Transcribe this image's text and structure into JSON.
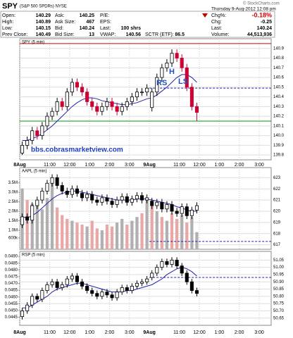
{
  "header": {
    "symbol": "SPY",
    "description": "(S&P 500 SPDRs) NYSE",
    "source": "© StockCharts.com",
    "datetime": "Thursday 9-Aug-2012 12:08 pm",
    "quotes": [
      [
        {
          "label": "Open:",
          "value": "140.29"
        },
        {
          "label": "High:",
          "value": "140.89"
        },
        {
          "label": "Low:",
          "value": "140.15"
        },
        {
          "label": "Prev Close:",
          "value": "140.49"
        }
      ],
      [
        {
          "label": "Ask:",
          "value": "140.25"
        },
        {
          "label": "Ask Size:",
          "value": "467"
        },
        {
          "label": "Bid:",
          "value": "140.24"
        },
        {
          "label": "Bid Size:",
          "value": "13"
        }
      ],
      [
        {
          "label": "P/E:"
        },
        {
          "label": "EPS:"
        },
        {
          "label": "Last:",
          "value": "100 shrs"
        },
        {
          "label": "VWAP:",
          "value": "140.56"
        }
      ],
      [
        {
          "label": "SCTR (ETF):",
          "value": "86.5"
        }
      ],
      [
        {
          "label": "Chg%:",
          "value": "-0.18%",
          "color": "#cc0000"
        },
        {
          "label": "Chg:",
          "value": "-0.25"
        },
        {
          "label": "Last:",
          "value": "140.24"
        },
        {
          "label": "Volume:",
          "value": "44,513,936"
        }
      ]
    ]
  },
  "chart_data": [
    {
      "type": "candlestick",
      "title": "SPY (5 min)",
      "grid": true,
      "show_xlabels": true,
      "up_color": "#000000",
      "down_color": "#cc0033",
      "ma_color": "#2222aa",
      "xlim": [
        0,
        12.6
      ],
      "ylim": [
        139.75,
        141.0
      ],
      "xticks": [
        {
          "value": 0,
          "label": "8Aug"
        },
        {
          "value": 1.5,
          "label": "11:00"
        },
        {
          "value": 2.5,
          "label": "12:00"
        },
        {
          "value": 3.5,
          "label": "1:00"
        },
        {
          "value": 4.5,
          "label": "2:00"
        },
        {
          "value": 5.5,
          "label": "3:00"
        },
        {
          "value": 6.5,
          "label": "9Aug"
        },
        {
          "value": 8,
          "label": "11:00"
        },
        {
          "value": 9,
          "label": "12:00"
        },
        {
          "value": 10,
          "label": "1:00"
        },
        {
          "value": 11,
          "label": "2:00"
        },
        {
          "value": 12,
          "label": "3:00"
        }
      ],
      "yticks": [
        139.8,
        139.9,
        {
          "value": 140,
          "label": "140.0"
        },
        140.1,
        140.2,
        140.3,
        140.4,
        140.5,
        140.6,
        140.7,
        140.8,
        140.9
      ],
      "x": [
        0.125,
        0.375,
        0.625,
        0.875,
        1.125,
        1.375,
        1.625,
        1.875,
        2.125,
        2.375,
        2.625,
        2.875,
        3.125,
        3.375,
        3.625,
        3.875,
        4.125,
        4.375,
        4.625,
        4.875,
        5.125,
        5.375,
        5.625,
        5.875,
        6.125,
        6.375,
        6.625,
        6.875,
        7.125,
        7.375,
        7.625,
        7.875,
        8.125,
        8.375,
        8.625,
        8.875
      ],
      "open": [
        139.82,
        139.9,
        139.95,
        140.05,
        140.0,
        140.1,
        140.2,
        140.25,
        140.35,
        140.3,
        140.45,
        140.55,
        140.5,
        140.45,
        140.35,
        140.3,
        140.25,
        140.3,
        140.35,
        140.3,
        140.25,
        140.3,
        140.35,
        140.4,
        140.45,
        140.45,
        140.29,
        140.45,
        140.6,
        140.7,
        140.75,
        140.85,
        140.8,
        140.7,
        140.5,
        140.3
      ],
      "high": [
        139.94,
        139.99,
        140.09,
        140.09,
        140.14,
        140.24,
        140.29,
        140.39,
        140.39,
        140.49,
        140.59,
        140.59,
        140.54,
        140.49,
        140.39,
        140.34,
        140.34,
        140.39,
        140.39,
        140.34,
        140.34,
        140.39,
        140.44,
        140.49,
        140.49,
        140.53,
        140.49,
        140.64,
        140.74,
        140.79,
        140.89,
        140.89,
        140.84,
        140.74,
        140.54,
        140.34
      ],
      "low": [
        139.8,
        139.86,
        139.91,
        139.96,
        139.96,
        140.06,
        140.16,
        140.21,
        140.26,
        140.26,
        140.41,
        140.46,
        140.41,
        140.31,
        140.26,
        140.21,
        140.21,
        140.26,
        140.26,
        140.21,
        140.21,
        140.26,
        140.31,
        140.36,
        140.41,
        140.41,
        140.25,
        140.41,
        140.56,
        140.66,
        140.71,
        140.76,
        140.66,
        140.46,
        140.26,
        140.15
      ],
      "close": [
        139.9,
        139.95,
        140.05,
        140.0,
        140.1,
        140.2,
        140.25,
        140.35,
        140.3,
        140.45,
        140.55,
        140.5,
        140.45,
        140.35,
        140.3,
        140.25,
        140.3,
        140.35,
        140.3,
        140.25,
        140.3,
        140.35,
        140.4,
        140.45,
        140.45,
        140.49,
        140.45,
        140.6,
        140.7,
        140.75,
        140.85,
        140.8,
        140.7,
        140.5,
        140.3,
        140.24
      ],
      "ma": [
        139.95,
        139.95,
        139.97,
        139.99,
        140.02,
        140.06,
        140.1,
        140.15,
        140.2,
        140.25,
        140.3,
        140.34,
        140.37,
        140.39,
        140.39,
        140.38,
        140.36,
        140.35,
        140.34,
        140.33,
        140.32,
        140.32,
        140.33,
        140.34,
        140.36,
        140.38,
        140.39,
        140.42,
        140.46,
        140.5,
        140.55,
        140.6,
        140.63,
        140.63,
        140.6,
        140.55
      ],
      "hlines": [
        {
          "value": 140.95,
          "color": "#cc0000"
        },
        {
          "value": 140.15,
          "color": "#009900"
        },
        {
          "value": 140.49,
          "color": "#2222aa",
          "dashed": true,
          "x_start": 6.5
        }
      ],
      "annotations": [
        {
          "text": "RS",
          "color": "#1f4fbf"
        },
        {
          "text": "H",
          "color": "#1f4fbf"
        },
        {
          "text": "LS",
          "color": "#1f4fbf"
        },
        {
          "text": "bbs.cobrasmarketview.com",
          "color": "#1f3fbf"
        }
      ]
    },
    {
      "type": "candlestick",
      "title": "AAPL (5 min)",
      "grid": true,
      "show_xlabels": false,
      "up_color": "#000000",
      "down_color": "#000000",
      "ma_color": "#2222aa",
      "volume_up_color": "#b0b0b0",
      "volume_down_color": "#e8a8a8",
      "xlim": [
        0,
        12.6
      ],
      "ylim": [
        616.6,
        623.9
      ],
      "y2lim": [
        0,
        4300000
      ],
      "xticks": [
        {
          "value": 0,
          "label": "8Aug"
        },
        {
          "value": 1.5,
          "label": "11:00"
        },
        {
          "value": 2.5,
          "label": "12:00"
        },
        {
          "value": 3.5,
          "label": "1:00"
        },
        {
          "value": 4.5,
          "label": "2:00"
        },
        {
          "value": 5.5,
          "label": "3:00"
        },
        {
          "value": 6.5,
          "label": "9Aug"
        },
        {
          "value": 8,
          "label": "11:00"
        },
        {
          "value": 9,
          "label": "12:00"
        },
        {
          "value": 10,
          "label": "1:00"
        },
        {
          "value": 11,
          "label": "2:00"
        },
        {
          "value": 12,
          "label": "3:00"
        }
      ],
      "yticks": [
        617,
        618,
        619,
        620,
        621,
        622,
        623
      ],
      "y2ticks": [
        {
          "value": 600000,
          "label": "600k"
        },
        {
          "value": 1000000,
          "label": "1.0M"
        },
        {
          "value": 1500000,
          "label": "1.5M"
        },
        {
          "value": 2000000,
          "label": "2.0M"
        },
        {
          "value": 2500000,
          "label": "2.5M"
        },
        {
          "value": 3000000,
          "label": "3.0M"
        },
        {
          "value": 3500000,
          "label": "3.5M"
        }
      ],
      "x": [
        0.125,
        0.375,
        0.625,
        0.875,
        1.125,
        1.375,
        1.625,
        1.875,
        2.125,
        2.375,
        2.625,
        2.875,
        3.125,
        3.375,
        3.625,
        3.875,
        4.125,
        4.375,
        4.625,
        4.875,
        5.125,
        5.375,
        5.625,
        5.875,
        6.125,
        6.375,
        6.625,
        6.875,
        7.125,
        7.375,
        7.625,
        7.875,
        8.125,
        8.375,
        8.625,
        8.875
      ],
      "open": [
        618.8,
        619.5,
        619.2,
        620.5,
        621.0,
        621.8,
        622.5,
        623.0,
        622.3,
        621.8,
        621.5,
        622.0,
        621.6,
        621.2,
        621.5,
        621.0,
        620.8,
        621.2,
        620.9,
        620.6,
        621.0,
        621.3,
        620.8,
        621.1,
        621.4,
        621.0,
        620.9,
        620.5,
        620.8,
        620.2,
        620.6,
        620.0,
        619.8,
        620.4,
        619.6,
        620.1
      ],
      "high": [
        619.8,
        619.8,
        620.8,
        621.3,
        622.1,
        622.8,
        623.3,
        623.3,
        622.6,
        622.1,
        622.3,
        622.3,
        621.9,
        621.8,
        621.8,
        621.3,
        621.5,
        621.5,
        621.2,
        621.3,
        621.6,
        621.6,
        621.4,
        621.7,
        621.7,
        621.5,
        621.2,
        621.1,
        621.1,
        620.9,
        620.9,
        620.3,
        620.7,
        620.7,
        620.4,
        620.8
      ],
      "low": [
        618.5,
        618.9,
        618.9,
        620.2,
        620.7,
        621.5,
        622.2,
        622.0,
        621.5,
        621.2,
        621.2,
        621.3,
        620.9,
        620.9,
        620.7,
        620.5,
        620.5,
        620.6,
        620.3,
        620.3,
        620.7,
        620.5,
        620.5,
        620.8,
        620.7,
        620.7,
        620.2,
        620.2,
        619.9,
        619.9,
        619.7,
        619.5,
        619.5,
        619.3,
        619.3,
        619.8
      ],
      "close": [
        619.5,
        619.2,
        620.5,
        621.0,
        621.8,
        622.5,
        623.0,
        622.3,
        621.8,
        621.5,
        622.0,
        621.6,
        621.2,
        621.5,
        621.0,
        620.8,
        621.2,
        620.9,
        620.6,
        621.0,
        621.3,
        620.8,
        621.1,
        621.4,
        621.0,
        621.2,
        620.5,
        620.8,
        620.2,
        620.6,
        620.0,
        619.8,
        620.4,
        619.6,
        620.1,
        620.5
      ],
      "volume": [
        3200000,
        2600000,
        2400000,
        2300000,
        2100000,
        2700000,
        3600000,
        2200000,
        1800000,
        1600000,
        1500000,
        1400000,
        1300000,
        1200000,
        1500000,
        1100000,
        1000000,
        1300000,
        1200000,
        1400000,
        1600000,
        1300000,
        1500000,
        1700000,
        1900000,
        2600000,
        2500000,
        2000000,
        1700000,
        1500000,
        1900000,
        1600000,
        1800000,
        1400000,
        1700000,
        900000
      ],
      "ma": [
        619.5,
        619.4,
        619.6,
        619.9,
        620.3,
        620.7,
        621.1,
        621.4,
        621.6,
        621.7,
        621.8,
        621.8,
        621.7,
        621.6,
        621.5,
        621.4,
        621.3,
        621.2,
        621.1,
        621.0,
        621.0,
        621.0,
        621.0,
        621.1,
        621.1,
        621.1,
        621.0,
        620.9,
        620.8,
        620.7,
        620.6,
        620.4,
        620.3,
        620.1,
        620.0,
        620.0
      ],
      "hlines": [
        {
          "value": 617.3,
          "color": "#2222aa",
          "dashed": true,
          "x_start": 6.5
        }
      ]
    },
    {
      "type": "candlestick",
      "title": "RSP (5 min)",
      "grid": true,
      "show_xlabels": true,
      "up_color": "#000000",
      "down_color": "#000000",
      "ma_color": "#2222aa",
      "xlim": [
        0,
        12.6
      ],
      "ylim": [
        50.6,
        51.11
      ],
      "y2lim": [
        0.0439,
        0.04937
      ],
      "xticks": [
        {
          "value": 0,
          "label": "8Aug"
        },
        {
          "value": 1.5,
          "label": "11:00"
        },
        {
          "value": 2.5,
          "label": "12:00"
        },
        {
          "value": 3.5,
          "label": "1:00"
        },
        {
          "value": 4.5,
          "label": "2:00"
        },
        {
          "value": 5.5,
          "label": "3:00"
        },
        {
          "value": 6.5,
          "label": "9Aug"
        },
        {
          "value": 8,
          "label": "11:00"
        },
        {
          "value": 9,
          "label": "12:00"
        },
        {
          "value": 10,
          "label": "1:00"
        },
        {
          "value": 11,
          "label": "2:00"
        },
        {
          "value": 12,
          "label": "3:00"
        }
      ],
      "yticks": [
        50.65,
        {
          "value": 50.7,
          "label": "50.70"
        },
        50.75,
        {
          "value": 50.8,
          "label": "50.80"
        },
        50.85,
        {
          "value": 50.9,
          "label": "50.90"
        },
        50.95,
        {
          "value": 51,
          "label": "51.00"
        },
        51.05
      ],
      "y2ticks": [
        0.0445,
        {
          "value": 0.045,
          "label": "0.0450"
        },
        0.0455,
        {
          "value": 0.046,
          "label": "0.0460"
        },
        0.0465,
        {
          "value": 0.047,
          "label": "0.0470"
        },
        0.0475,
        {
          "value": 0.048,
          "label": "0.0480"
        },
        0.0485,
        {
          "value": 0.049,
          "label": "0.0490"
        }
      ],
      "x": [
        0.125,
        0.375,
        0.625,
        0.875,
        1.125,
        1.375,
        1.625,
        1.875,
        2.125,
        2.375,
        2.625,
        2.875,
        3.125,
        3.375,
        3.625,
        3.875,
        4.125,
        4.375,
        4.625,
        4.875,
        5.125,
        5.375,
        5.625,
        5.875,
        6.125,
        6.375,
        6.625,
        6.875,
        7.125,
        7.375,
        7.625,
        7.875,
        8.125,
        8.375,
        8.625,
        8.875
      ],
      "open": [
        50.66,
        50.7,
        50.74,
        50.8,
        50.78,
        50.84,
        50.88,
        50.9,
        50.86,
        50.88,
        50.92,
        50.94,
        50.9,
        50.87,
        50.84,
        50.82,
        50.8,
        50.83,
        50.81,
        50.79,
        50.83,
        50.86,
        50.84,
        50.87,
        50.89,
        50.9,
        50.93,
        50.96,
        51.0,
        51.04,
        51.02,
        51.05,
        51.01,
        50.96,
        50.9,
        50.84
      ],
      "high": [
        50.72,
        50.76,
        50.82,
        50.82,
        50.86,
        50.9,
        50.92,
        50.92,
        50.9,
        50.94,
        50.96,
        50.96,
        50.92,
        50.89,
        50.86,
        50.84,
        50.85,
        50.85,
        50.83,
        50.85,
        50.88,
        50.88,
        50.89,
        50.91,
        50.92,
        50.94,
        50.98,
        51.02,
        51.06,
        51.06,
        51.07,
        51.07,
        51.03,
        50.98,
        50.92,
        50.86
      ],
      "low": [
        50.64,
        50.68,
        50.72,
        50.76,
        50.76,
        50.82,
        50.86,
        50.84,
        50.84,
        50.86,
        50.9,
        50.88,
        50.85,
        50.82,
        50.8,
        50.78,
        50.78,
        50.79,
        50.77,
        50.77,
        50.81,
        50.82,
        50.82,
        50.85,
        50.87,
        50.88,
        50.91,
        50.94,
        50.98,
        51.0,
        51.0,
        50.99,
        50.94,
        50.88,
        50.82,
        50.8
      ],
      "close": [
        50.7,
        50.74,
        50.8,
        50.78,
        50.84,
        50.88,
        50.9,
        50.86,
        50.88,
        50.92,
        50.94,
        50.9,
        50.87,
        50.84,
        50.82,
        50.8,
        50.83,
        50.81,
        50.79,
        50.83,
        50.86,
        50.84,
        50.87,
        50.89,
        50.9,
        50.92,
        50.96,
        51.0,
        51.04,
        51.02,
        51.05,
        51.01,
        50.96,
        50.9,
        50.84,
        50.82
      ],
      "ma": [
        50.72,
        50.72,
        50.74,
        50.76,
        50.78,
        50.8,
        50.83,
        50.85,
        50.86,
        50.87,
        50.88,
        50.89,
        50.89,
        50.88,
        50.87,
        50.86,
        50.85,
        50.84,
        50.83,
        50.83,
        50.83,
        50.84,
        50.84,
        50.85,
        50.86,
        50.87,
        50.88,
        50.9,
        50.92,
        50.95,
        50.97,
        50.99,
        51.0,
        50.99,
        50.97,
        50.94
      ],
      "hlines": [
        {
          "value": 50.93,
          "color": "#2222aa",
          "dashed": true,
          "x_start": 6.5
        }
      ]
    }
  ]
}
